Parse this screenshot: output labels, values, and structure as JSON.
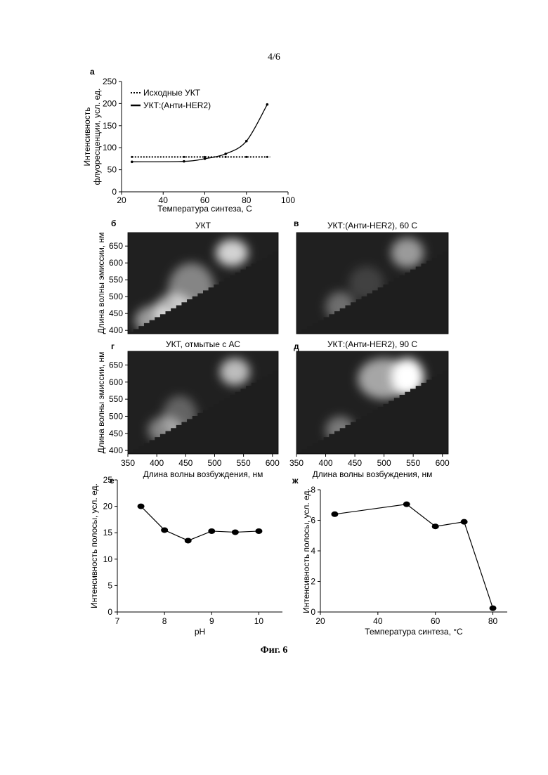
{
  "page_number": "4/6",
  "figure_caption": "Фиг. 6",
  "chart_data": [
    {
      "panel": "а",
      "type": "line",
      "xlabel": "Температура синтеза, С",
      "ylabel_lines": [
        "Интенсивность",
        "флуоресценции, усл. ед."
      ],
      "xlim": [
        20,
        100
      ],
      "ylim": [
        0,
        250
      ],
      "xticks": [
        20,
        40,
        60,
        80,
        100
      ],
      "yticks": [
        0,
        50,
        100,
        150,
        200,
        250
      ],
      "legend_position": "top-left",
      "series": [
        {
          "name": "Исходные УКТ",
          "style": "dotted",
          "x": [
            25,
            50,
            60,
            70,
            80,
            90
          ],
          "y": [
            79,
            79,
            79,
            79,
            79,
            79
          ]
        },
        {
          "name": "УКТ:(Анти-HER2)",
          "style": "solid-fit",
          "x": [
            25,
            50,
            60,
            70,
            80,
            90
          ],
          "y": [
            68,
            69,
            75,
            86,
            115,
            198
          ]
        }
      ]
    },
    {
      "panel": "б",
      "type": "heatmap",
      "title": "УКТ",
      "ylabel": "Длина волны эмиссии, нм",
      "xticks": [],
      "yticks": [
        400,
        450,
        500,
        550,
        600,
        650
      ],
      "xlim": [
        350,
        610
      ],
      "ylim": [
        390,
        690
      ],
      "blobs": [
        {
          "ex": 400,
          "em": 430,
          "w": 38,
          "h": 45,
          "a": 0.55
        },
        {
          "ex": 430,
          "em": 455,
          "w": 35,
          "h": 55,
          "a": 0.6
        },
        {
          "ex": 460,
          "em": 520,
          "w": 40,
          "h": 80,
          "a": 0.45
        },
        {
          "ex": 530,
          "em": 630,
          "w": 28,
          "h": 40,
          "a": 0.8
        }
      ]
    },
    {
      "panel": "в",
      "type": "heatmap",
      "title": "УКТ:(Анти-HER2), 60 С",
      "xticks": [],
      "yticks": [],
      "xlim": [
        350,
        610
      ],
      "ylim": [
        390,
        690
      ],
      "blobs": [
        {
          "ex": 425,
          "em": 470,
          "w": 25,
          "h": 45,
          "a": 0.35
        },
        {
          "ex": 470,
          "em": 540,
          "w": 30,
          "h": 50,
          "a": 0.15
        },
        {
          "ex": 540,
          "em": 630,
          "w": 28,
          "h": 45,
          "a": 0.55
        }
      ]
    },
    {
      "panel": "г",
      "type": "heatmap",
      "title": "УКТ, отмытые с АС",
      "ylabel": "Длина волны эмиссии, нм",
      "xlabel": "Длина волны возбуждения, нм",
      "xticks": [
        350,
        400,
        450,
        500,
        550,
        600
      ],
      "yticks": [
        400,
        450,
        500,
        550,
        600,
        650
      ],
      "xlim": [
        350,
        610
      ],
      "ylim": [
        390,
        690
      ],
      "blobs": [
        {
          "ex": 415,
          "em": 460,
          "w": 30,
          "h": 40,
          "a": 0.45
        },
        {
          "ex": 440,
          "em": 500,
          "w": 30,
          "h": 60,
          "a": 0.3
        },
        {
          "ex": 535,
          "em": 630,
          "w": 26,
          "h": 40,
          "a": 0.7
        }
      ]
    },
    {
      "panel": "д",
      "type": "heatmap",
      "title": "УКТ:(Анти-HER2), 90 С",
      "xlabel": "Длина волны возбуждения, нм",
      "xticks": [
        350,
        400,
        450,
        500,
        550,
        600
      ],
      "yticks": [],
      "xlim": [
        350,
        610
      ],
      "ylim": [
        390,
        690
      ],
      "blobs": [
        {
          "ex": 425,
          "em": 460,
          "w": 25,
          "h": 40,
          "a": 0.4
        },
        {
          "ex": 500,
          "em": 610,
          "w": 45,
          "h": 60,
          "a": 0.6
        },
        {
          "ex": 540,
          "em": 615,
          "w": 28,
          "h": 55,
          "a": 1.0
        }
      ]
    },
    {
      "panel": "е",
      "type": "line",
      "xlabel": "pH",
      "ylabel": "Интенсивность полосы, усл. ед.",
      "xlim": [
        7,
        10.5
      ],
      "ylim": [
        0,
        25
      ],
      "xticks": [
        7,
        8,
        9,
        10
      ],
      "yticks": [
        0,
        5,
        10,
        15,
        20,
        25
      ],
      "series": [
        {
          "x": [
            7.5,
            8,
            8.5,
            9,
            9.5,
            10
          ],
          "y": [
            20,
            15.5,
            13.5,
            15.3,
            15.1,
            15.3
          ]
        }
      ]
    },
    {
      "panel": "ж",
      "type": "line",
      "xlabel": "Температура синтеза, °С",
      "ylabel": "Интенсивность полосы, усл. ед.",
      "xlim": [
        20,
        85
      ],
      "ylim": [
        0,
        8
      ],
      "xticks": [
        20,
        40,
        60,
        80
      ],
      "yticks": [
        0,
        2,
        4,
        6,
        8
      ],
      "series": [
        {
          "x": [
            25,
            50,
            60,
            70,
            80
          ],
          "y": [
            6.4,
            7.05,
            5.6,
            5.9,
            0.25
          ]
        }
      ]
    }
  ]
}
